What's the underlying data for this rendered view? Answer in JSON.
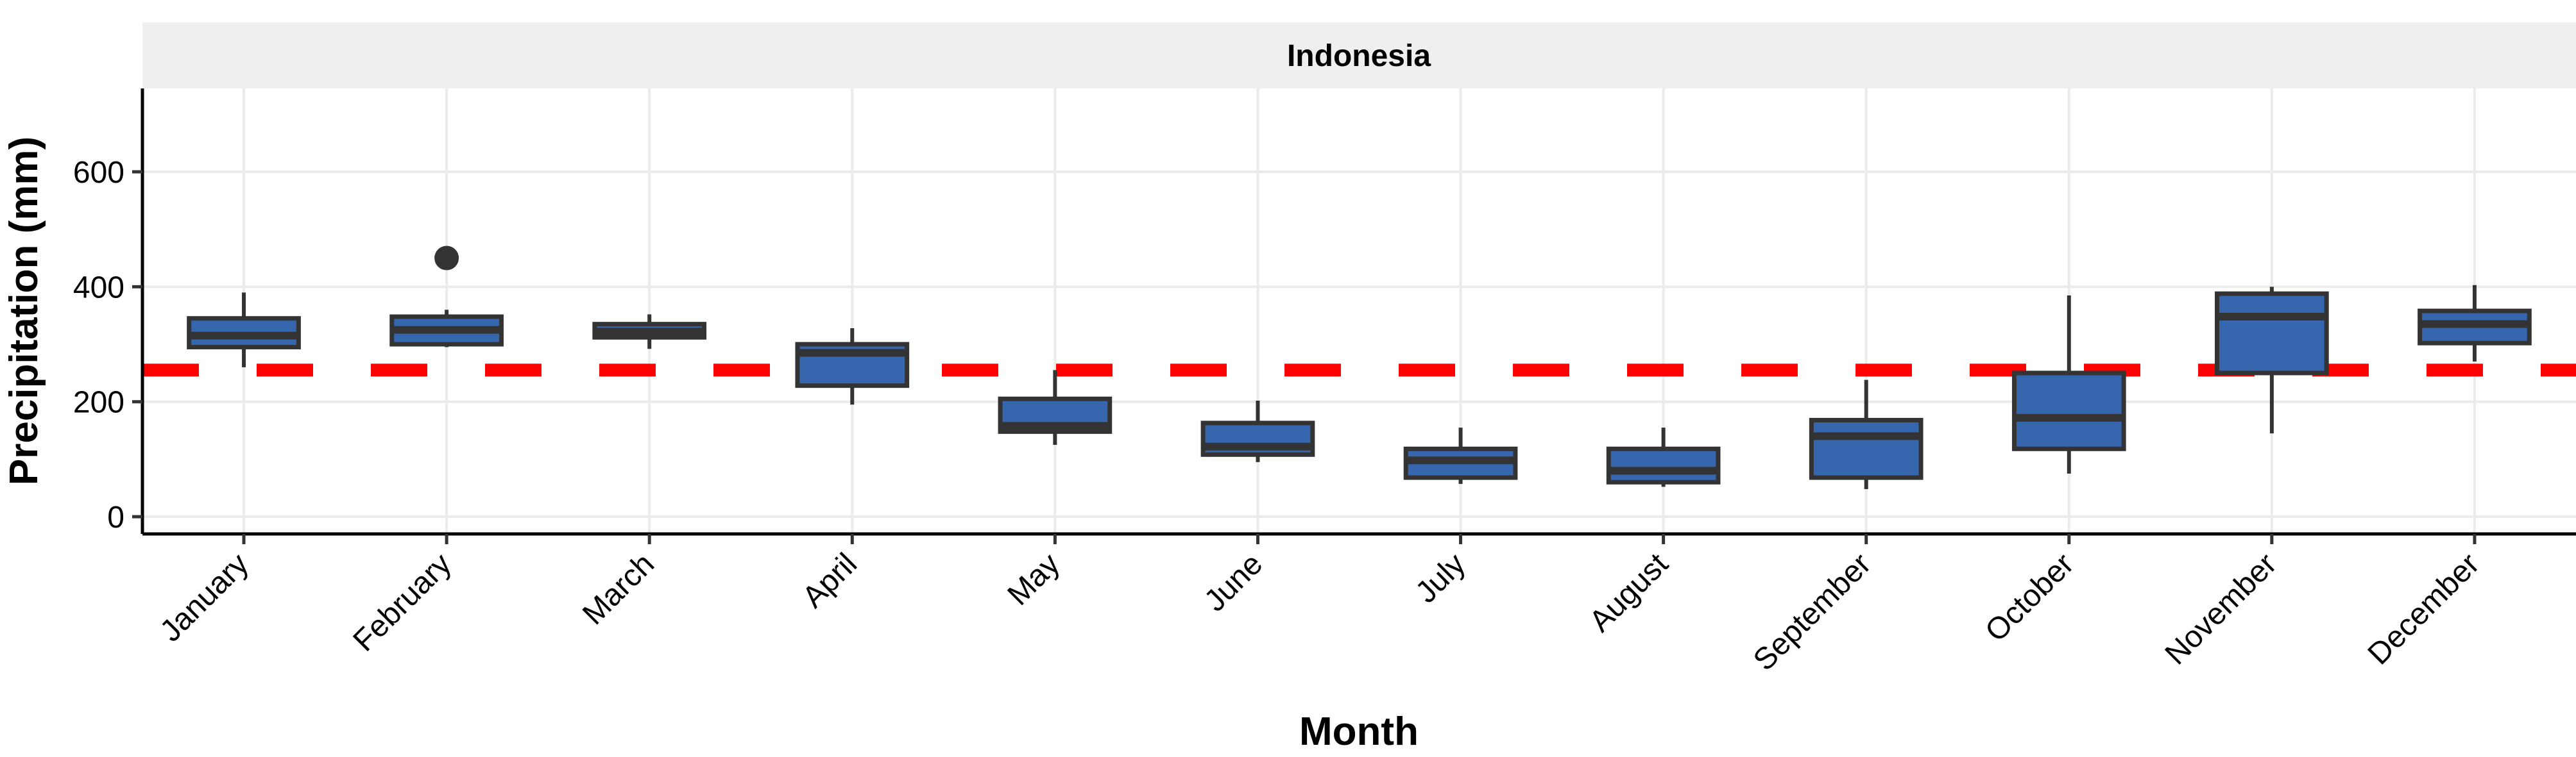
{
  "chart_data": {
    "type": "boxplot",
    "facet": "Indonesia",
    "xlabel": "Month",
    "ylabel": "Precipitation (mm)",
    "categories": [
      "January",
      "February",
      "March",
      "April",
      "May",
      "June",
      "July",
      "August",
      "September",
      "October",
      "November",
      "December"
    ],
    "boxes": [
      {
        "month": "January",
        "whisker_low": 260,
        "q1": 295,
        "median": 315,
        "q3": 345,
        "whisker_high": 390,
        "outliers": []
      },
      {
        "month": "February",
        "whisker_low": 295,
        "q1": 300,
        "median": 325,
        "q3": 348,
        "whisker_high": 360,
        "outliers": [
          450
        ]
      },
      {
        "month": "March",
        "whisker_low": 292,
        "q1": 312,
        "median": 322,
        "q3": 335,
        "whisker_high": 352,
        "outliers": []
      },
      {
        "month": "April",
        "whisker_low": 195,
        "q1": 228,
        "median": 285,
        "q3": 300,
        "whisker_high": 328,
        "outliers": []
      },
      {
        "month": "May",
        "whisker_low": 125,
        "q1": 148,
        "median": 158,
        "q3": 205,
        "whisker_high": 255,
        "outliers": []
      },
      {
        "month": "June",
        "whisker_low": 95,
        "q1": 108,
        "median": 122,
        "q3": 163,
        "whisker_high": 202,
        "outliers": []
      },
      {
        "month": "July",
        "whisker_low": 57,
        "q1": 68,
        "median": 98,
        "q3": 118,
        "whisker_high": 155,
        "outliers": []
      },
      {
        "month": "August",
        "whisker_low": 52,
        "q1": 60,
        "median": 80,
        "q3": 118,
        "whisker_high": 155,
        "outliers": []
      },
      {
        "month": "September",
        "whisker_low": 48,
        "q1": 68,
        "median": 140,
        "q3": 168,
        "whisker_high": 238,
        "outliers": []
      },
      {
        "month": "October",
        "whisker_low": 75,
        "q1": 118,
        "median": 172,
        "q3": 250,
        "whisker_high": 385,
        "outliers": []
      },
      {
        "month": "November",
        "whisker_low": 145,
        "q1": 250,
        "median": 348,
        "q3": 388,
        "whisker_high": 400,
        "outliers": []
      },
      {
        "month": "December",
        "whisker_low": 270,
        "q1": 302,
        "median": 335,
        "q3": 358,
        "whisker_high": 403,
        "outliers": []
      }
    ],
    "reference_line": {
      "value": 255,
      "style": "dashed",
      "color": "#ff0000"
    },
    "ylim": [
      -30,
      745
    ],
    "yticks": [
      0,
      200,
      400,
      600
    ],
    "box_fill": "#3667ae",
    "box_stroke": "#333333",
    "grid": true,
    "legend": "none"
  }
}
